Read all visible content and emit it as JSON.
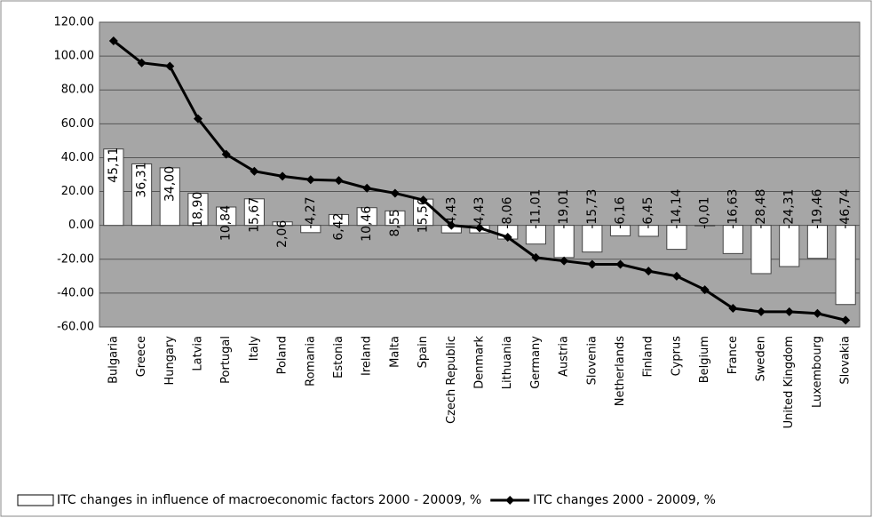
{
  "chart_data": {
    "type": "bar_line",
    "categories": [
      "Bulgaria",
      "Greece",
      "Hungary",
      "Latvia",
      "Portugal",
      "Italy",
      "Poland",
      "Romania",
      "Estonia",
      "Ireland",
      "Malta",
      "Spain",
      "Czech Republic",
      "Denmark",
      "Lithuania",
      "Germany",
      "Austria",
      "Slovenia",
      "Netherlands",
      "Finland",
      "Cyprus",
      "Belgium",
      "France",
      "Sweden",
      "United Kingdom",
      "Luxembourg",
      "Slovakia"
    ],
    "series": [
      {
        "name": "ITC changes in influence of macroeconomic factors 2000 - 20009, %",
        "type": "bar",
        "color": "#ffffff",
        "values": [
          45.11,
          36.31,
          34.0,
          18.9,
          10.84,
          15.67,
          2.06,
          -4.27,
          6.42,
          10.46,
          8.55,
          15.5,
          -4.43,
          -4.43,
          -8.06,
          -11.01,
          -19.01,
          -15.73,
          -6.16,
          -6.45,
          -14.14,
          -0.01,
          -16.63,
          -28.48,
          -24.31,
          -19.46,
          -46.74
        ],
        "value_labels": [
          "45,11",
          "36,31",
          "34,00",
          "18,90",
          "10,84",
          "15,67",
          "2,06",
          "-4,27",
          "6,42",
          "10,46",
          "8,55",
          "15,50",
          "-4,43",
          "-4,43",
          "-8,06",
          "-11,01",
          "-19,01",
          "-15,73",
          "-6,16",
          "-6,45",
          "-14,14",
          "-0,01",
          "-16,63",
          "-28,48",
          "-24,31",
          "-19,46",
          "-46,74"
        ]
      },
      {
        "name": "ITC changes 2000 - 20009, %",
        "type": "line",
        "color": "#000000",
        "values": [
          109,
          96,
          94,
          63,
          42,
          32,
          29,
          27,
          26.5,
          22,
          19,
          15,
          0,
          -1.5,
          -7,
          -19,
          -21,
          -23,
          -23,
          -27,
          -30,
          -38,
          -49,
          -51,
          -51,
          -52,
          -56
        ]
      }
    ],
    "ylim": [
      -60,
      120
    ],
    "yticks": [
      {
        "value": -60,
        "label": "-60.00"
      },
      {
        "value": -40,
        "label": "-40.00"
      },
      {
        "value": -20,
        "label": "-20.00"
      },
      {
        "value": 0,
        "label": "0.00"
      },
      {
        "value": 20,
        "label": "20.00"
      },
      {
        "value": 40,
        "label": "40.00"
      },
      {
        "value": 60,
        "label": "60.00"
      },
      {
        "value": 80,
        "label": "80.00"
      },
      {
        "value": 100,
        "label": "100.00"
      },
      {
        "value": 120,
        "label": "120.00"
      }
    ],
    "grid": true
  }
}
